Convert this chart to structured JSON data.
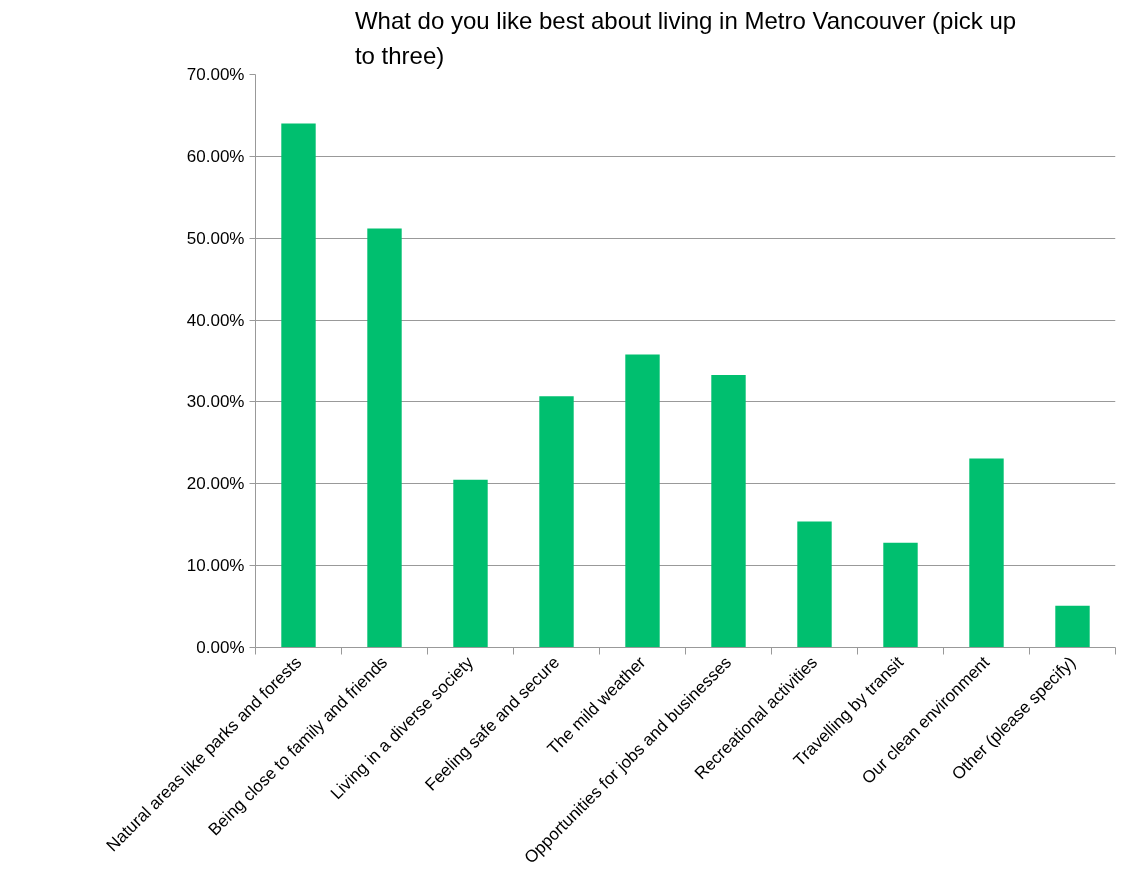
{
  "chart_data": {
    "type": "bar",
    "title": "What do you like best about living in Metro Vancouver (pick up to three)",
    "categories": [
      "Natural areas like parks and forests",
      "Being close to family and friends",
      "Living in a diverse society",
      "Feeling safe and secure",
      "The mild weather",
      "Opportunities for jobs and businesses",
      "Recreational activities",
      "Travelling by transit",
      "Our clean environment",
      "Other (please specify)"
    ],
    "values": [
      64.0,
      51.2,
      20.5,
      30.7,
      35.8,
      33.3,
      15.4,
      12.8,
      23.1,
      5.1
    ],
    "color": "#00bf6f",
    "ylim": [
      0,
      70
    ],
    "yticks": [
      {
        "value": 0,
        "label": "0.00%"
      },
      {
        "value": 10,
        "label": "10.00%"
      },
      {
        "value": 20,
        "label": "20.00%"
      },
      {
        "value": 30,
        "label": "30.00%"
      },
      {
        "value": 40,
        "label": "40.00%"
      },
      {
        "value": 50,
        "label": "50.00%"
      },
      {
        "value": 60,
        "label": "60.00%"
      },
      {
        "value": 70,
        "label": "70.00%"
      }
    ],
    "grid": "y"
  }
}
